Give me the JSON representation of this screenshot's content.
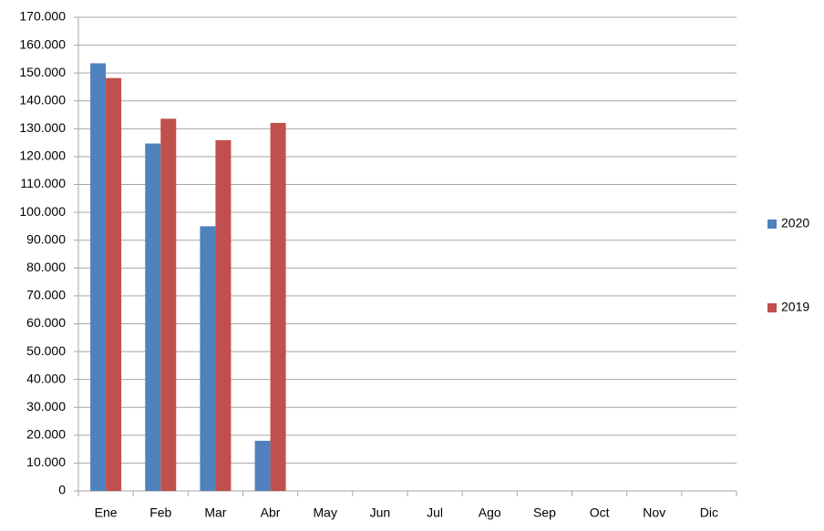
{
  "chart_data": {
    "type": "bar",
    "categories": [
      "Ene",
      "Feb",
      "Mar",
      "Abr",
      "May",
      "Jun",
      "Jul",
      "Ago",
      "Sep",
      "Oct",
      "Nov",
      "Dic"
    ],
    "series": [
      {
        "name": "2020",
        "color": "#4f81bd",
        "values": [
          153500,
          124700,
          95000,
          18000,
          null,
          null,
          null,
          null,
          null,
          null,
          null,
          null
        ]
      },
      {
        "name": "2019",
        "color": "#c0504d",
        "values": [
          148200,
          133600,
          125900,
          132100,
          null,
          null,
          null,
          null,
          null,
          null,
          null,
          null
        ]
      }
    ],
    "ylim": [
      0,
      170000
    ],
    "yticks": [
      0,
      {
        "value": 10000,
        "label": "10.000"
      },
      {
        "value": 20000,
        "label": "20.000"
      },
      {
        "value": 30000,
        "label": "30.000"
      },
      {
        "value": 40000,
        "label": "40.000"
      },
      {
        "value": 50000,
        "label": "50.000"
      },
      {
        "value": 60000,
        "label": "60.000"
      },
      {
        "value": 70000,
        "label": "70.000"
      },
      {
        "value": 80000,
        "label": "80.000"
      },
      {
        "value": 90000,
        "label": "90.000"
      },
      {
        "value": 100000,
        "label": "100.000"
      },
      {
        "value": 110000,
        "label": "110.000"
      },
      {
        "value": 120000,
        "label": "120.000"
      },
      {
        "value": 130000,
        "label": "130.000"
      },
      {
        "value": 140000,
        "label": "140.000"
      },
      {
        "value": 150000,
        "label": "150.000"
      },
      {
        "value": 160000,
        "label": "160.000"
      },
      {
        "value": 170000,
        "label": "170.000"
      }
    ],
    "grid": true,
    "legend": "right"
  }
}
